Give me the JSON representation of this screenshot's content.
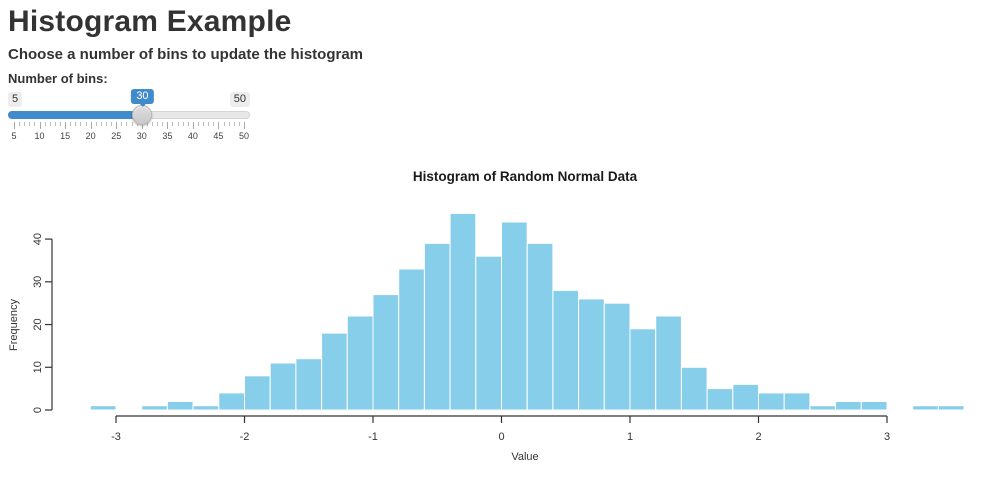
{
  "header": {
    "title": "Histogram Example",
    "subtitle": "Choose a number of bins to update the histogram"
  },
  "slider": {
    "label": "Number of bins:",
    "min": 5,
    "max": 50,
    "value": 30,
    "min_label": "5",
    "max_label": "50",
    "value_label": "30",
    "tick_labels": [
      "5",
      "10",
      "15",
      "20",
      "25",
      "30",
      "35",
      "40",
      "45",
      "50"
    ],
    "accent_color": "#428bca"
  },
  "chart_data": {
    "type": "bar",
    "subtype": "histogram",
    "title": "Histogram of Random Normal Data",
    "xlabel": "Value",
    "ylabel": "Frequency",
    "bin_start": -3.2,
    "bin_width": 0.2,
    "frequencies": [
      1,
      0,
      1,
      2,
      1,
      4,
      8,
      11,
      12,
      18,
      22,
      27,
      33,
      39,
      46,
      36,
      44,
      39,
      28,
      26,
      25,
      19,
      22,
      10,
      5,
      6,
      4,
      4,
      1,
      2,
      2,
      0,
      1,
      1
    ],
    "x_ticks": [
      -3,
      -2,
      -1,
      0,
      1,
      2,
      3
    ],
    "y_ticks": [
      0,
      10,
      20,
      30,
      40
    ],
    "xlim": [
      -3,
      3
    ],
    "ylim": [
      0,
      46
    ],
    "grid": false,
    "legend": "none",
    "bar_color": "#87CEEB",
    "bar_border_color": "#ffffff",
    "axis_color": "#333333"
  }
}
